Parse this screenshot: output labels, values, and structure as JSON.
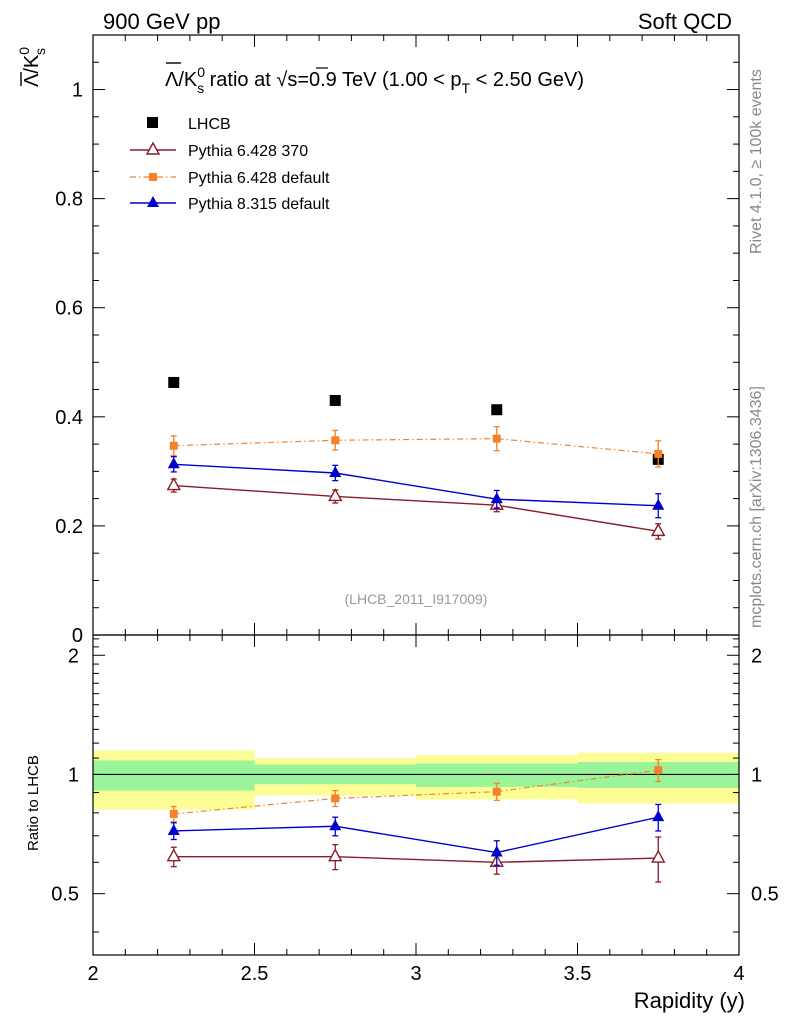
{
  "header": {
    "left": "900 GeV pp",
    "right": "Soft QCD"
  },
  "side_labels": {
    "rivet": "Rivet 4.1.0, ≥ 100k events",
    "mcplots": "mcplots.cern.ch [arXiv:1306.3436]"
  },
  "chart_data": [
    {
      "type": "scatter",
      "panel": "main",
      "title": "Λ̅/K⁰ₛ ratio at √s=0.9 TeV (1.00 < pT < 2.50 GeV)",
      "title_parts": {
        "lambda_bar": "Λ",
        "slash_k": "/K",
        "k_sup": "0",
        "k_sub": "s",
        "ratio_at": " ratio at ",
        "sqrt": "√",
        "sqrt_s": "s",
        "energy": "=0.9 TeV (1.00 < p",
        "pt_sub": "T",
        "range_end": " < 2.50 GeV)"
      },
      "ylabel_parts": {
        "lambda_bar": "Λ",
        "slash_k": "/K",
        "k_sup": "0",
        "k_sub": "s"
      },
      "watermark": "(LHCB_2011_I917009)",
      "xlim": [
        2,
        4
      ],
      "ylim": [
        0,
        1.1
      ],
      "y_ticks": [
        0,
        0.2,
        0.4,
        0.6,
        0.8,
        1
      ],
      "y_tick_labels": [
        "0",
        "0.2",
        "0.4",
        "0.6",
        "0.8",
        "1"
      ],
      "series": [
        {
          "name": "LHCB",
          "style": "data",
          "color": "#000000",
          "marker": "square-filled",
          "x": [
            2.25,
            2.75,
            3.25,
            3.75
          ],
          "y": [
            0.463,
            0.43,
            0.413,
            0.322
          ],
          "err": [
            0,
            0,
            0,
            0
          ]
        },
        {
          "name": "Pythia 6.428 370",
          "style": "solid",
          "color": "#8b1a2b",
          "marker": "triangle-open",
          "x": [
            2.25,
            2.75,
            3.25,
            3.75
          ],
          "y": [
            0.274,
            0.254,
            0.238,
            0.19
          ],
          "err": [
            0.012,
            0.012,
            0.012,
            0.014
          ]
        },
        {
          "name": "Pythia 6.428 default",
          "style": "dashdot",
          "color": "#f5822a",
          "marker": "square-small",
          "x": [
            2.25,
            2.75,
            3.25,
            3.75
          ],
          "y": [
            0.347,
            0.357,
            0.36,
            0.332
          ],
          "err": [
            0.018,
            0.018,
            0.022,
            0.024
          ]
        },
        {
          "name": "Pythia 8.315 default",
          "style": "solid",
          "color": "#0000cc",
          "marker": "triangle-filled",
          "x": [
            2.25,
            2.75,
            3.25,
            3.75
          ],
          "y": [
            0.313,
            0.297,
            0.249,
            0.237
          ],
          "err": [
            0.014,
            0.014,
            0.016,
            0.022
          ]
        }
      ]
    },
    {
      "type": "scatter",
      "panel": "ratio",
      "ylabel": "Ratio to LHCB",
      "xlabel": "Rapidity (y)",
      "xlim": [
        2,
        4
      ],
      "ylim": [
        0.35,
        2.25
      ],
      "y_ticks": [
        0.5,
        1,
        2
      ],
      "y_tick_labels": [
        "0.5",
        "1",
        "2"
      ],
      "x_ticks": [
        2,
        2.5,
        3,
        3.5,
        4
      ],
      "x_tick_labels": [
        "2",
        "2.5",
        "3",
        "3.5",
        "4"
      ],
      "bands": [
        {
          "x0": 2.0,
          "x1": 2.5,
          "yellow": [
            0.815,
            1.15
          ],
          "green": [
            0.91,
            1.085
          ]
        },
        {
          "x0": 2.5,
          "x1": 3.0,
          "yellow": [
            0.885,
            1.1
          ],
          "green": [
            0.945,
            1.06
          ]
        },
        {
          "x0": 3.0,
          "x1": 3.5,
          "yellow": [
            0.865,
            1.12
          ],
          "green": [
            0.93,
            1.065
          ]
        },
        {
          "x0": 3.5,
          "x1": 4.0,
          "yellow": [
            0.845,
            1.135
          ],
          "green": [
            0.925,
            1.075
          ]
        }
      ],
      "series": [
        {
          "name": "Pythia 6.428 370",
          "style": "solid",
          "color": "#8b1a2b",
          "marker": "triangle-open",
          "x": [
            2.25,
            2.75,
            3.25,
            3.75
          ],
          "y": [
            0.62,
            0.62,
            0.6,
            0.615
          ],
          "err": [
            0.035,
            0.045,
            0.04,
            0.08
          ]
        },
        {
          "name": "Pythia 6.428 default",
          "style": "dashdot",
          "color": "#f5822a",
          "marker": "square-small",
          "x": [
            2.25,
            2.75,
            3.25,
            3.75
          ],
          "y": [
            0.795,
            0.87,
            0.905,
            1.025
          ],
          "err": [
            0.035,
            0.04,
            0.045,
            0.065
          ]
        },
        {
          "name": "Pythia 8.315 default",
          "style": "solid",
          "color": "#0000cc",
          "marker": "triangle-filled",
          "x": [
            2.25,
            2.75,
            3.25,
            3.75
          ],
          "y": [
            0.72,
            0.74,
            0.635,
            0.78
          ],
          "err": [
            0.035,
            0.04,
            0.045,
            0.06
          ]
        }
      ]
    }
  ]
}
